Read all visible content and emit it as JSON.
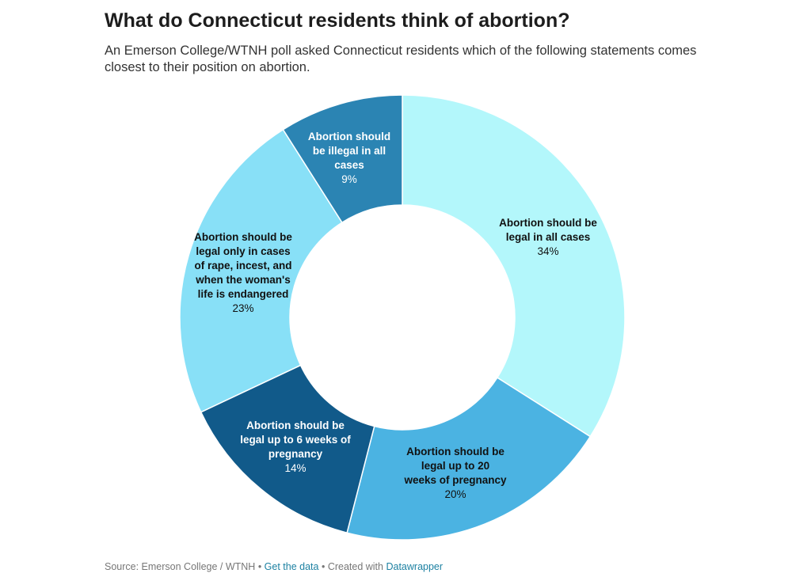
{
  "title": "What do Connecticut residents think of abortion?",
  "subtitle": "An Emerson College/WTNH poll asked Connecticut residents which of the following statements comes closest to their position on abortion.",
  "chart_data": {
    "type": "pie",
    "variant": "donut",
    "title": "What do Connecticut residents think of abortion?",
    "slices": [
      {
        "label": "Abortion should be legal in all cases",
        "value": 34,
        "value_label": "34%",
        "color": "#b3f7fb",
        "text_color": "#111111"
      },
      {
        "label": "Abortion should be legal up to 20 weeks of pregnancy",
        "value": 20,
        "value_label": "20%",
        "color": "#4bb3e2",
        "text_color": "#111111"
      },
      {
        "label": "Abortion should be legal up to 6 weeks of pregnancy",
        "value": 14,
        "value_label": "14%",
        "color": "#115a8a",
        "text_color": "#ffffff"
      },
      {
        "label": "Abortion should be legal only in cases of rape, incest, and when the woman's life is endangered",
        "value": 23,
        "value_label": "23%",
        "color": "#88e0f7",
        "text_color": "#111111"
      },
      {
        "label": "Abortion should be illegal in all cases",
        "value": 9,
        "value_label": "9%",
        "color": "#2b84b3",
        "text_color": "#ffffff"
      }
    ]
  },
  "footer": {
    "source": "Source: Emerson College / WTNH",
    "sep": " • ",
    "get_data": "Get the data",
    "created": "Created with",
    "tool": "Datawrapper"
  }
}
